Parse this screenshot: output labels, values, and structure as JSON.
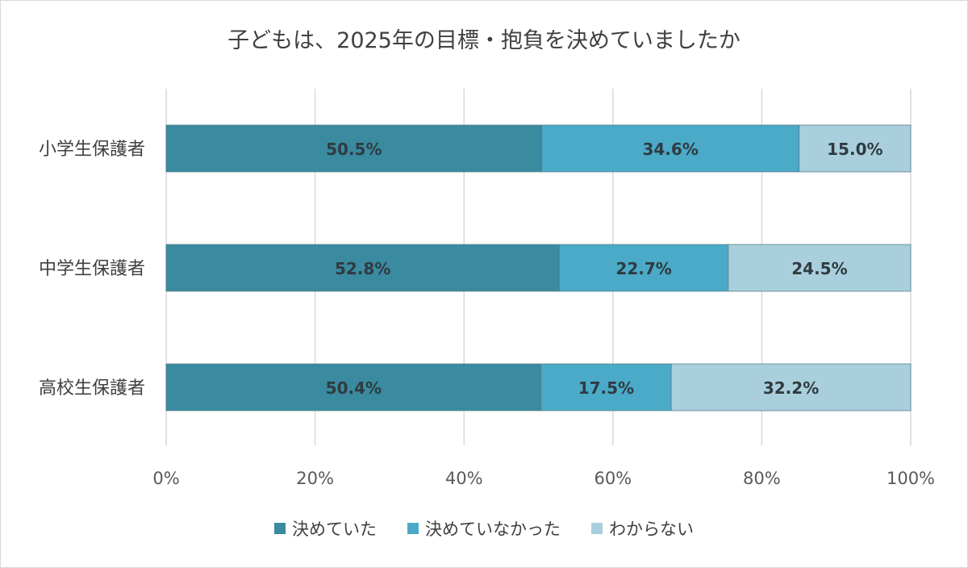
{
  "chart_data": {
    "type": "bar",
    "orientation": "horizontal",
    "stacked": true,
    "title": "子どもは、2025年の目標・抱負を決めていましたか",
    "categories": [
      "小学生保護者",
      "中学生保護者",
      "高校生保護者"
    ],
    "series": [
      {
        "name": "決めていた",
        "values": [
          50.5,
          52.8,
          50.4
        ],
        "labels": [
          "50.5%",
          "52.8%",
          "50.4%"
        ],
        "color": "#3a8aa0"
      },
      {
        "name": "決めていなかった",
        "values": [
          34.6,
          22.7,
          17.5
        ],
        "labels": [
          "34.6%",
          "22.7%",
          "17.5%"
        ],
        "color": "#4aaac8"
      },
      {
        "name": "わからない",
        "values": [
          15.0,
          24.5,
          32.2
        ],
        "labels": [
          "15.0%",
          "24.5%",
          "32.2%"
        ],
        "color": "#a9cfdd"
      }
    ],
    "xlim": [
      0,
      100
    ],
    "xticks": [
      "0%",
      "20%",
      "40%",
      "60%",
      "80%",
      "100%"
    ],
    "grid": true,
    "legend_position": "bottom"
  }
}
